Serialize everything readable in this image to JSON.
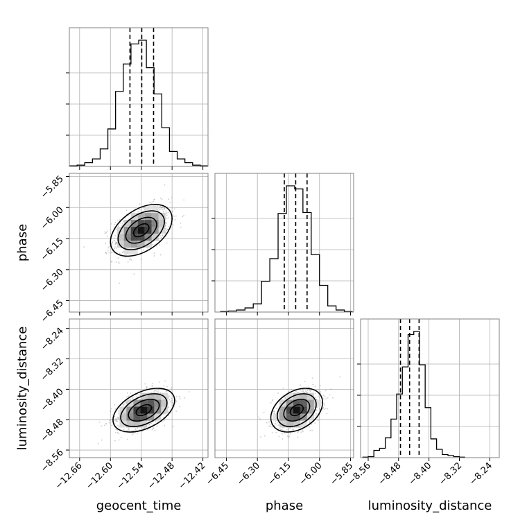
{
  "chart_data": {
    "type": "corner-plot",
    "parameters": [
      "geocent_time",
      "phase",
      "luminosity_distance"
    ],
    "axis_labels": {
      "x": [
        "geocent_time",
        "phase",
        "luminosity_distance"
      ],
      "y": [
        "phase",
        "luminosity_distance"
      ]
    },
    "ranges": {
      "geocent_time": [
        -12.68,
        -12.41
      ],
      "phase": [
        -6.505,
        -5.835
      ],
      "luminosity_distance": [
        -8.58,
        -8.215
      ]
    },
    "ticks": {
      "geocent_time": [
        -12.66,
        -12.6,
        -12.54,
        -12.48,
        -12.42
      ],
      "phase": [
        -6.45,
        -6.3,
        -6.15,
        -6.0,
        -5.85
      ],
      "luminosity_distance": [
        -8.56,
        -8.48,
        -8.4,
        -8.32,
        -8.24
      ]
    },
    "tick_labels": {
      "geocent_time": [
        "−12.66",
        "−12.60",
        "−12.54",
        "−12.48",
        "−12.42"
      ],
      "phase": [
        "−6.45",
        "−6.30",
        "−6.15",
        "−6.00",
        "−5.85"
      ],
      "luminosity_distance": [
        "−8.56",
        "−8.48",
        "−8.40",
        "−8.32",
        "−8.24"
      ]
    },
    "histograms": {
      "geocent_time": {
        "edges": [
          -12.68,
          -12.665,
          -12.65,
          -12.635,
          -12.62,
          -12.605,
          -12.59,
          -12.575,
          -12.56,
          -12.545,
          -12.53,
          -12.515,
          -12.5,
          -12.485,
          -12.47,
          -12.455,
          -12.44,
          -12.425,
          -12.41
        ],
        "counts": [
          0.5,
          1,
          3,
          6,
          14,
          30,
          60,
          82,
          98,
          101,
          79,
          58,
          31,
          12,
          6,
          3,
          1,
          0.5
        ],
        "quantiles": [
          -12.562,
          -12.539,
          -12.516
        ]
      },
      "phase": {
        "edges": [
          -6.48,
          -6.44,
          -6.4,
          -6.36,
          -6.32,
          -6.28,
          -6.24,
          -6.2,
          -6.16,
          -6.12,
          -6.08,
          -6.04,
          -6.0,
          -5.96,
          -5.92,
          -5.88,
          -5.84
        ],
        "counts": [
          0.5,
          1,
          2,
          4,
          8,
          30,
          52,
          96,
          123,
          120,
          97,
          56,
          26,
          6,
          2,
          0.5
        ],
        "quantiles": [
          -6.17,
          -6.115,
          -6.06
        ]
      },
      "luminosity_distance": {
        "edges": [
          -8.575,
          -8.56,
          -8.545,
          -8.53,
          -8.515,
          -8.5,
          -8.485,
          -8.47,
          -8.455,
          -8.44,
          -8.425,
          -8.41,
          -8.395,
          -8.38,
          -8.365,
          -8.35,
          -8.335,
          -8.32,
          -8.305
        ],
        "counts": [
          0.5,
          1,
          7,
          9,
          19,
          37,
          61,
          87,
          118,
          121,
          89,
          48,
          18,
          8,
          3,
          2,
          1,
          0.5
        ],
        "quantiles": [
          -8.475,
          -8.451,
          -8.426
        ]
      }
    },
    "joint_distributions": [
      {
        "x": "geocent_time",
        "y": "phase",
        "center": [
          -12.54,
          -6.11
        ],
        "sigma": [
          0.024,
          0.05
        ],
        "correlation": 0.45
      },
      {
        "x": "geocent_time",
        "y": "luminosity_distance",
        "center": [
          -12.535,
          -8.455
        ],
        "sigma": [
          0.024,
          0.023
        ],
        "correlation": 0.45
      },
      {
        "x": "phase",
        "y": "luminosity_distance",
        "center": [
          -6.11,
          -8.455
        ],
        "sigma": [
          0.05,
          0.023
        ],
        "correlation": 0.35
      }
    ],
    "contour_levels": [
      0.5,
      1.0,
      1.5,
      2.0
    ],
    "grid": true,
    "colors": {
      "line": "#000000",
      "grid": "#b0b0b0",
      "points": "#8c8c8c",
      "frame": "#808080"
    }
  }
}
